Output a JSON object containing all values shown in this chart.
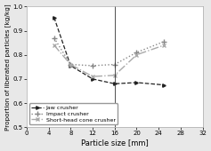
{
  "title": "",
  "xlabel": "Particle size [mm]",
  "ylabel": "Proportion of liberated particles [kg/kg]",
  "xlim": [
    0,
    32
  ],
  "ylim": [
    0.5,
    1.0
  ],
  "xticks": [
    0,
    4,
    8,
    12,
    16,
    20,
    24,
    28,
    32
  ],
  "yticks": [
    0.5,
    0.6,
    0.7,
    0.8,
    0.9,
    1.0
  ],
  "series": [
    {
      "label": "Jaw crusher",
      "x": [
        5,
        8,
        12,
        16,
        20,
        25
      ],
      "y": [
        0.955,
        0.755,
        0.7,
        0.68,
        0.685,
        0.675
      ],
      "color": "#222222",
      "linestyle": "--",
      "marker": ">",
      "markersize": 2.5,
      "linewidth": 0.9,
      "markerfacecolor": "#222222"
    },
    {
      "label": "Impact crusher",
      "x": [
        5,
        8,
        12,
        16,
        20,
        25
      ],
      "y": [
        0.87,
        0.76,
        0.755,
        0.76,
        0.81,
        0.855
      ],
      "color": "#888888",
      "linestyle": ":",
      "marker": "+",
      "markersize": 4,
      "linewidth": 1.0,
      "markerfacecolor": "#888888"
    },
    {
      "label": "Short-head cone crusher",
      "x": [
        5,
        8,
        12,
        16,
        20,
        25
      ],
      "y": [
        0.84,
        0.76,
        0.71,
        0.715,
        0.8,
        0.84
      ],
      "color": "#aaaaaa",
      "linestyle": "-.",
      "marker": "x",
      "markersize": 3,
      "linewidth": 1.0,
      "markerfacecolor": "#aaaaaa"
    }
  ],
  "legend_loc": "lower left",
  "plot_bg_color": "#ffffff",
  "fig_bg_color": "#e8e8e8",
  "vline_x": 16,
  "vline_color": "#333333",
  "xlabel_fontsize": 6,
  "ylabel_fontsize": 5.2,
  "tick_fontsize": 5,
  "legend_fontsize": 4.5
}
